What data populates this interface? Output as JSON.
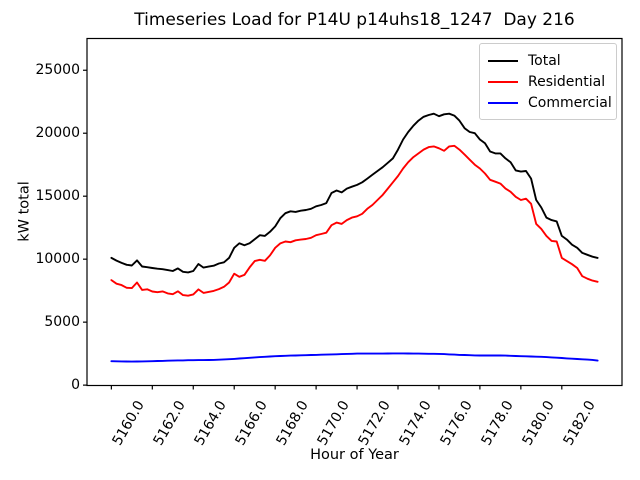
{
  "chart_data": {
    "type": "line",
    "title": "Timeseries Load for P14U p14uhs18_1247  Day 216",
    "xlabel": "Hour of Year",
    "ylabel": "kW total",
    "grid": false,
    "legend_position": "upper right",
    "xlim": [
      5158.81,
      5184.94
    ],
    "ylim": [
      -30,
      27520
    ],
    "x_ticks": [
      "5160.0",
      "5162.0",
      "5164.0",
      "5166.0",
      "5168.0",
      "5170.0",
      "5172.0",
      "5174.0",
      "5176.0",
      "5178.0",
      "5180.0",
      "5182.0"
    ],
    "y_ticks": [
      "0",
      "5000",
      "10000",
      "15000",
      "20000",
      "25000"
    ],
    "x": [
      5160.0,
      5160.25,
      5160.5,
      5160.75,
      5161.0,
      5161.25,
      5161.5,
      5161.75,
      5162.0,
      5162.25,
      5162.5,
      5162.75,
      5163.0,
      5163.25,
      5163.5,
      5163.75,
      5164.0,
      5164.25,
      5164.5,
      5164.75,
      5165.0,
      5165.25,
      5165.5,
      5165.75,
      5166.0,
      5166.25,
      5166.5,
      5166.75,
      5167.0,
      5167.25,
      5167.5,
      5167.75,
      5168.0,
      5168.25,
      5168.5,
      5168.75,
      5169.0,
      5169.25,
      5169.5,
      5169.75,
      5170.0,
      5170.25,
      5170.5,
      5170.75,
      5171.0,
      5171.25,
      5171.5,
      5171.75,
      5172.0,
      5172.25,
      5172.5,
      5172.75,
      5173.0,
      5173.25,
      5173.5,
      5173.75,
      5174.0,
      5174.25,
      5174.5,
      5174.75,
      5175.0,
      5175.25,
      5175.5,
      5175.75,
      5176.0,
      5176.25,
      5176.5,
      5176.75,
      5177.0,
      5177.25,
      5177.5,
      5177.75,
      5178.0,
      5178.25,
      5178.5,
      5178.75,
      5179.0,
      5179.25,
      5179.5,
      5179.75,
      5180.0,
      5180.25,
      5180.5,
      5180.75,
      5181.0,
      5181.25,
      5181.5,
      5181.75,
      5182.0,
      5182.25,
      5182.5,
      5182.75,
      5183.0,
      5183.25,
      5183.5,
      5183.75
    ],
    "series": [
      {
        "name": "Total",
        "color": "#000000",
        "values": [
          10100,
          9890,
          9700,
          9550,
          9500,
          9900,
          9420,
          9360,
          9300,
          9240,
          9200,
          9130,
          9060,
          9270,
          9000,
          8950,
          9060,
          9620,
          9330,
          9410,
          9480,
          9660,
          9750,
          10100,
          10900,
          11260,
          11100,
          11260,
          11580,
          11900,
          11850,
          12170,
          12600,
          13250,
          13650,
          13800,
          13750,
          13850,
          13900,
          14000,
          14200,
          14300,
          14450,
          15250,
          15450,
          15300,
          15600,
          15750,
          15900,
          16100,
          16400,
          16700,
          17000,
          17300,
          17650,
          18000,
          18700,
          19500,
          20100,
          20600,
          21000,
          21300,
          21450,
          21550,
          21350,
          21500,
          21550,
          21400,
          21000,
          20400,
          20100,
          20000,
          19500,
          19200,
          18550,
          18400,
          18400,
          18000,
          17700,
          17050,
          16950,
          17000,
          16400,
          14700,
          14100,
          13300,
          13100,
          13000,
          11850,
          11550,
          11150,
          10900,
          10500,
          10350,
          10200,
          10100
        ]
      },
      {
        "name": "Residential",
        "color": "#ff0000",
        "values": [
          8340,
          8050,
          7940,
          7730,
          7700,
          8150,
          7560,
          7610,
          7430,
          7380,
          7440,
          7280,
          7220,
          7450,
          7150,
          7100,
          7200,
          7600,
          7320,
          7400,
          7480,
          7620,
          7810,
          8150,
          8850,
          8600,
          8750,
          9350,
          9850,
          9950,
          9870,
          10300,
          10900,
          11250,
          11400,
          11350,
          11500,
          11550,
          11600,
          11700,
          11900,
          12000,
          12100,
          12700,
          12900,
          12800,
          13100,
          13300,
          13400,
          13600,
          14000,
          14300,
          14700,
          15100,
          15600,
          16100,
          16600,
          17200,
          17700,
          18100,
          18400,
          18700,
          18900,
          18950,
          18800,
          18600,
          18950,
          19000,
          18700,
          18300,
          17900,
          17500,
          17200,
          16800,
          16300,
          16150,
          16000,
          15600,
          15350,
          14950,
          14700,
          14800,
          14400,
          12800,
          12400,
          11850,
          11450,
          11400,
          10100,
          9850,
          9600,
          9300,
          8650,
          8450,
          8300,
          8200
        ]
      },
      {
        "name": "Commercial",
        "color": "#0000ff",
        "values": [
          1900,
          1890,
          1880,
          1875,
          1870,
          1875,
          1880,
          1890,
          1900,
          1915,
          1925,
          1940,
          1950,
          1960,
          1965,
          1975,
          1980,
          1985,
          1990,
          1995,
          2000,
          2020,
          2040,
          2060,
          2080,
          2110,
          2140,
          2170,
          2200,
          2225,
          2250,
          2275,
          2300,
          2315,
          2325,
          2340,
          2350,
          2365,
          2375,
          2390,
          2400,
          2415,
          2425,
          2440,
          2450,
          2465,
          2475,
          2490,
          2500,
          2500,
          2500,
          2500,
          2500,
          2505,
          2510,
          2515,
          2520,
          2515,
          2510,
          2505,
          2500,
          2495,
          2490,
          2485,
          2480,
          2460,
          2440,
          2420,
          2400,
          2390,
          2375,
          2360,
          2350,
          2350,
          2350,
          2350,
          2350,
          2340,
          2330,
          2315,
          2300,
          2290,
          2275,
          2260,
          2250,
          2225,
          2200,
          2175,
          2150,
          2125,
          2100,
          2075,
          2050,
          2025,
          2000,
          1950
        ]
      }
    ]
  }
}
